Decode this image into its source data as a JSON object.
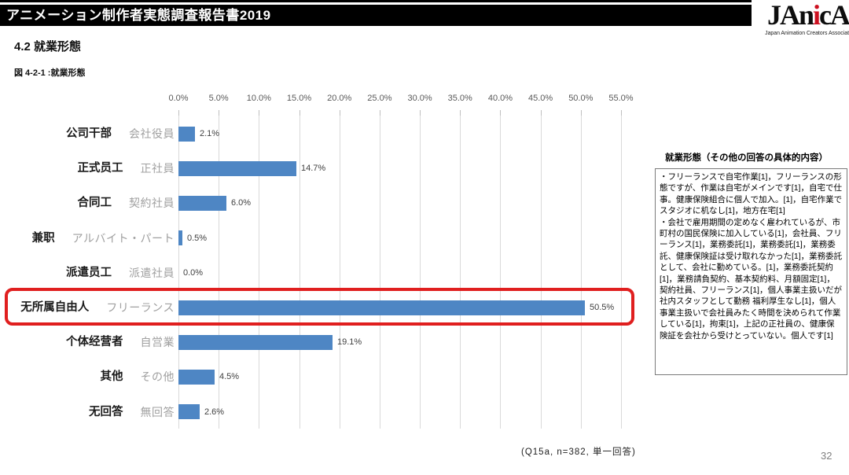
{
  "header": {
    "title": "アニメーション制作者実態調査報告書2019"
  },
  "logo": {
    "prefix": "JAn",
    "accent": "i",
    "suffix": "cA",
    "tagline": "Japan Animation Creators Associat",
    "accent_color": "#cc1020"
  },
  "section": {
    "heading": "4.2  就業形態",
    "figure_label": "図 4-2-1 :就業形態"
  },
  "chart_data": {
    "type": "bar",
    "orientation": "horizontal",
    "title": "図 4-2-1 :就業形態",
    "categories": [
      {
        "zh": "公司干部",
        "ja": "会社役員"
      },
      {
        "zh": "正式员工",
        "ja": "正社員"
      },
      {
        "zh": "合同工",
        "ja": "契約社員"
      },
      {
        "zh": "兼职",
        "ja": "アルバイト・パート"
      },
      {
        "zh": "派遣员工",
        "ja": "派遣社員"
      },
      {
        "zh": "无所属自由人",
        "ja": "フリーランス"
      },
      {
        "zh": "个体经营者",
        "ja": "自営業"
      },
      {
        "zh": "其他",
        "ja": "その他"
      },
      {
        "zh": "无回答",
        "ja": "無回答"
      }
    ],
    "values": [
      2.1,
      14.7,
      6.0,
      0.5,
      0.0,
      50.5,
      19.1,
      4.5,
      2.6
    ],
    "value_labels": [
      "2.1%",
      "14.7%",
      "6.0%",
      "0.5%",
      "0.0%",
      "50.5%",
      "19.1%",
      "4.5%",
      "2.6%"
    ],
    "x_ticks": [
      "0.0%",
      "5.0%",
      "10.0%",
      "15.0%",
      "20.0%",
      "25.0%",
      "30.0%",
      "35.0%",
      "40.0%",
      "45.0%",
      "50.0%",
      "55.0%"
    ],
    "xlim": [
      0,
      55
    ],
    "grid": true,
    "legend": false,
    "bar_color": "#4e86c4",
    "gridline_color": "#d9d9d9",
    "highlighted_index": 5,
    "highlight_color": "#e01f1f"
  },
  "side_panel": {
    "title": "就業形態（その他の回答の具体的内容）",
    "paragraphs": [
      "・フリーランスで自宅作業[1]，フリーランスの形態ですが、作業は自宅がメインです[1]，自宅で仕事。健康保険組合に個人で加入。[1]，自宅作業でスタジオに机なし[1]，地方在宅[1]",
      "・会社で雇用期間の定めなく雇われているが、市町村の国民保険に加入している[1]，会社員、フリーランス[1]，業務委託[1]，業務委託[1]，業務委託、健康保険証は受け取れなかった[1]，業務委託として、会社に勤めている。[1]，業務委託契約[1]，業務請負契約、基本契約料、月額固定[1]，契約社員、フリーランス[1]，個人事業主扱いだが社内スタッフとして勤務 福利厚生なし[1]，個人事業主扱いで会社員みたく時間を決められて作業している[1]，拘束[1]，上記の正社員の、健康保険証を会社から受けとっていない。個人です[1]"
    ]
  },
  "footer": {
    "note": "(Q15a, n=382, 単一回答)",
    "page_number": "32"
  }
}
